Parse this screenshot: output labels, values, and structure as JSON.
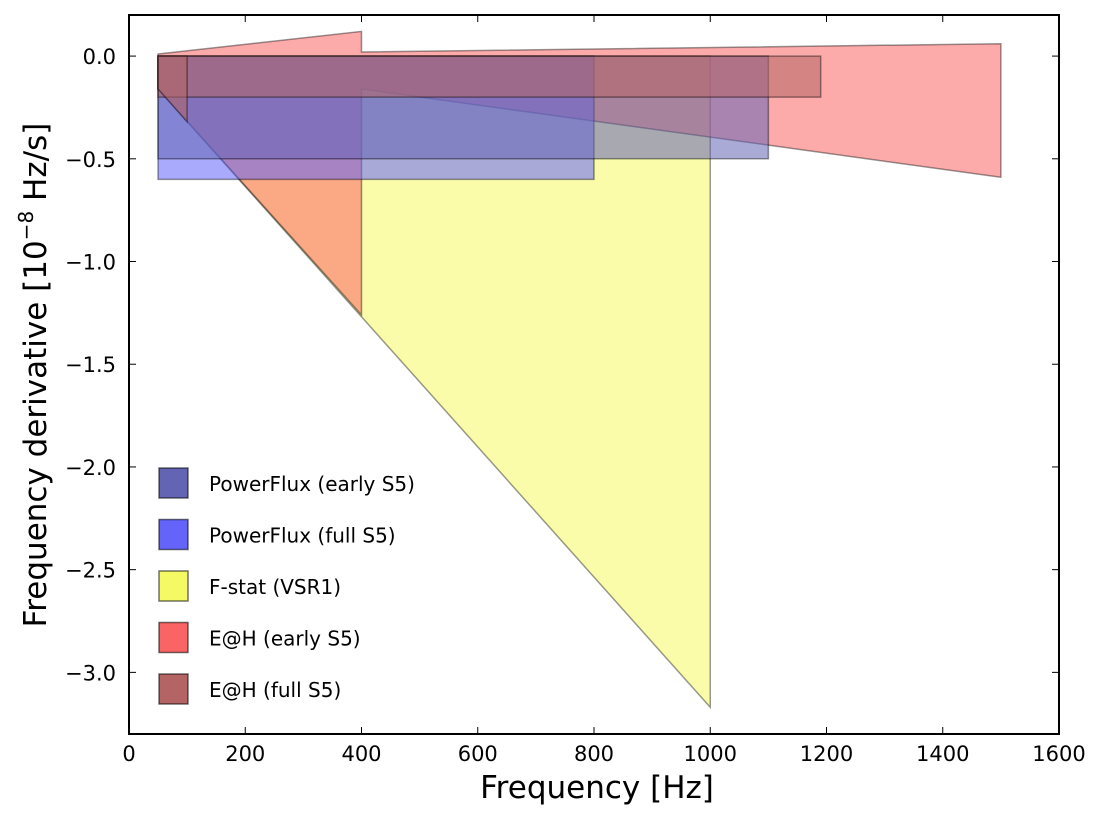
{
  "chart_data": {
    "type": "area",
    "title": "",
    "xlabel": "Frequency [Hz]",
    "ylabel_main": "Frequency derivative [10",
    "ylabel_sup": "−8",
    "ylabel_tail": " Hz/s]",
    "xlim": [
      0,
      1600
    ],
    "ylim": [
      -3.3,
      0.2
    ],
    "xticks": [
      0,
      200,
      400,
      600,
      800,
      1000,
      1200,
      1400,
      1600
    ],
    "xtick_labels": [
      "0",
      "200",
      "400",
      "600",
      "800",
      "1000",
      "1200",
      "1400",
      "1600"
    ],
    "yticks": [
      0.0,
      -0.5,
      -1.0,
      -1.5,
      -2.0,
      -2.5,
      -3.0
    ],
    "ytick_labels": [
      "0.0",
      "−0.5",
      "−1.0",
      "−1.5",
      "−2.0",
      "−2.5",
      "−3.0"
    ],
    "grid": false,
    "legend_position": "lower-left",
    "series": [
      {
        "name": "F-stat (VSR1)",
        "color": "#f5fa64",
        "polygons": [
          [
            [
              50,
              0.0
            ],
            [
              1000,
              0.0
            ],
            [
              1000,
              -3.17
            ],
            [
              50,
              -0.16
            ]
          ]
        ]
      },
      {
        "name": "E@H (early S5)",
        "color": "#fa6464",
        "polygons": [
          [
            [
              50,
              0.01
            ],
            [
              400,
              0.12
            ],
            [
              400,
              0.02
            ],
            [
              1500,
              0.06
            ],
            [
              1500,
              -0.59
            ],
            [
              400,
              -0.16
            ],
            [
              400,
              -1.26
            ],
            [
              50,
              -0.16
            ]
          ]
        ]
      },
      {
        "name": "PowerFlux (full S5)",
        "color": "#6464fa",
        "polygons": [
          [
            [
              50,
              0.0
            ],
            [
              800,
              0.0
            ],
            [
              800,
              -0.6
            ],
            [
              50,
              -0.6
            ]
          ]
        ]
      },
      {
        "name": "PowerFlux (early S5)",
        "color": "#6464b4",
        "polygons": [
          [
            [
              50,
              0.0
            ],
            [
              1100,
              0.0
            ],
            [
              1100,
              -0.5
            ],
            [
              50,
              -0.5
            ]
          ]
        ]
      },
      {
        "name": "E@H (full S5)",
        "color": "#b46464",
        "polygons": [
          [
            [
              50,
              0.0
            ],
            [
              1190,
              0.0
            ],
            [
              1190,
              -0.2
            ],
            [
              50,
              -0.2
            ]
          ],
          [
            [
              50,
              0.0
            ],
            [
              100,
              0.0
            ],
            [
              100,
              -0.32
            ],
            [
              50,
              -0.16
            ]
          ]
        ]
      }
    ],
    "legend_order": [
      "PowerFlux (early S5)",
      "PowerFlux (full S5)",
      "F-stat (VSR1)",
      "E@H (early S5)",
      "E@H (full S5)"
    ],
    "fill_alpha": 0.55
  }
}
